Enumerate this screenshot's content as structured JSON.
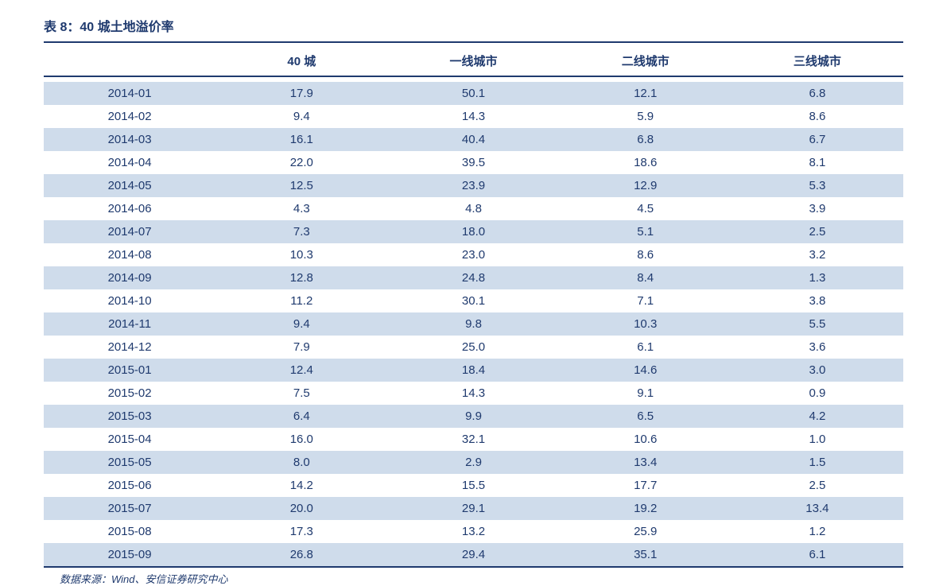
{
  "table": {
    "title": "表 8：40 城土地溢价率",
    "columns": [
      "",
      "40 城",
      "一线城市",
      "二线城市",
      "三线城市"
    ],
    "rows": [
      [
        "2014-01",
        "17.9",
        "50.1",
        "12.1",
        "6.8"
      ],
      [
        "2014-02",
        "9.4",
        "14.3",
        "5.9",
        "8.6"
      ],
      [
        "2014-03",
        "16.1",
        "40.4",
        "6.8",
        "6.7"
      ],
      [
        "2014-04",
        "22.0",
        "39.5",
        "18.6",
        "8.1"
      ],
      [
        "2014-05",
        "12.5",
        "23.9",
        "12.9",
        "5.3"
      ],
      [
        "2014-06",
        "4.3",
        "4.8",
        "4.5",
        "3.9"
      ],
      [
        "2014-07",
        "7.3",
        "18.0",
        "5.1",
        "2.5"
      ],
      [
        "2014-08",
        "10.3",
        "23.0",
        "8.6",
        "3.2"
      ],
      [
        "2014-09",
        "12.8",
        "24.8",
        "8.4",
        "1.3"
      ],
      [
        "2014-10",
        "11.2",
        "30.1",
        "7.1",
        "3.8"
      ],
      [
        "2014-11",
        "9.4",
        "9.8",
        "10.3",
        "5.5"
      ],
      [
        "2014-12",
        "7.9",
        "25.0",
        "6.1",
        "3.6"
      ],
      [
        "2015-01",
        "12.4",
        "18.4",
        "14.6",
        "3.0"
      ],
      [
        "2015-02",
        "7.5",
        "14.3",
        "9.1",
        "0.9"
      ],
      [
        "2015-03",
        "6.4",
        "9.9",
        "6.5",
        "4.2"
      ],
      [
        "2015-04",
        "16.0",
        "32.1",
        "10.6",
        "1.0"
      ],
      [
        "2015-05",
        "8.0",
        "2.9",
        "13.4",
        "1.5"
      ],
      [
        "2015-06",
        "14.2",
        "15.5",
        "17.7",
        "2.5"
      ],
      [
        "2015-07",
        "20.0",
        "29.1",
        "19.2",
        "13.4"
      ],
      [
        "2015-08",
        "17.3",
        "13.2",
        "25.9",
        "1.2"
      ],
      [
        "2015-09",
        "26.8",
        "29.4",
        "35.1",
        "6.1"
      ]
    ],
    "source": "数据来源：Wind、安信证券研究中心",
    "colors": {
      "text": "#1f3a6e",
      "alt_row_bg": "#cfdceb",
      "border": "#1f3a6e",
      "background": "#ffffff"
    },
    "font_size_title": 16,
    "font_size_header": 15,
    "font_size_cell": 15,
    "font_size_source": 13
  }
}
